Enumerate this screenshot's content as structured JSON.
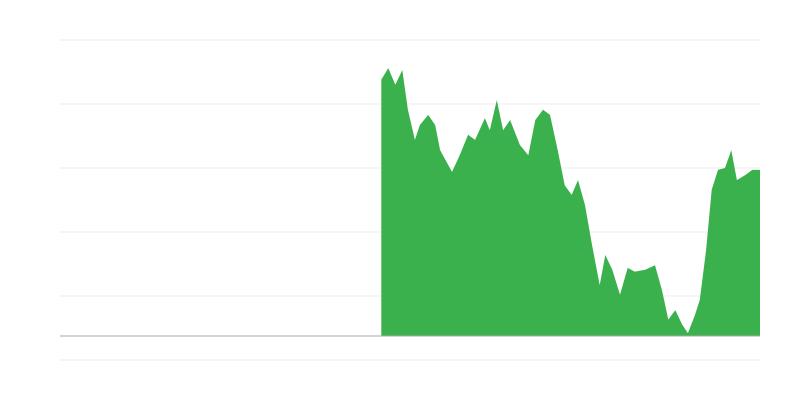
{
  "chart_data": {
    "type": "area",
    "color": "#3ab14c",
    "grid": true,
    "xlim": [
      0,
      100
    ],
    "ylim": [
      0,
      50
    ],
    "yticks": [
      0,
      10,
      20,
      30,
      40,
      50
    ],
    "baseline": 3.75,
    "x": [
      45.9,
      46.9,
      47.9,
      48.9,
      49.7,
      50.7,
      51.4,
      52.6,
      53.6,
      54.3,
      56.0,
      57.1,
      58.3,
      59.3,
      60.7,
      61.4,
      62.4,
      63.3,
      64.3,
      65.7,
      66.9,
      67.9,
      69.0,
      70.0,
      71.1,
      72.1,
      73.1,
      74.0,
      75.0,
      76.0,
      77.1,
      77.9,
      78.9,
      80.0,
      81.1,
      82.1,
      83.6,
      85.0,
      86.0,
      86.9,
      87.9,
      88.9,
      89.7,
      90.7,
      91.4,
      92.3,
      93.1,
      94.0,
      95.0,
      95.9,
      96.7,
      97.9,
      98.9,
      100.0
    ],
    "values": [
      43.8,
      45.6,
      43.0,
      45.3,
      39.1,
      34.4,
      36.7,
      38.3,
      36.7,
      32.8,
      29.4,
      32.0,
      35.2,
      34.4,
      37.8,
      35.9,
      40.6,
      35.9,
      37.5,
      33.6,
      32.0,
      37.5,
      39.1,
      38.3,
      32.8,
      27.3,
      25.8,
      28.1,
      24.2,
      18.0,
      11.7,
      16.4,
      14.1,
      10.2,
      14.4,
      13.8,
      14.1,
      14.8,
      10.9,
      6.3,
      7.8,
      5.5,
      4.2,
      7.0,
      9.4,
      17.2,
      26.6,
      29.7,
      30.0,
      32.8,
      28.1,
      28.9,
      29.7,
      29.7
    ]
  }
}
